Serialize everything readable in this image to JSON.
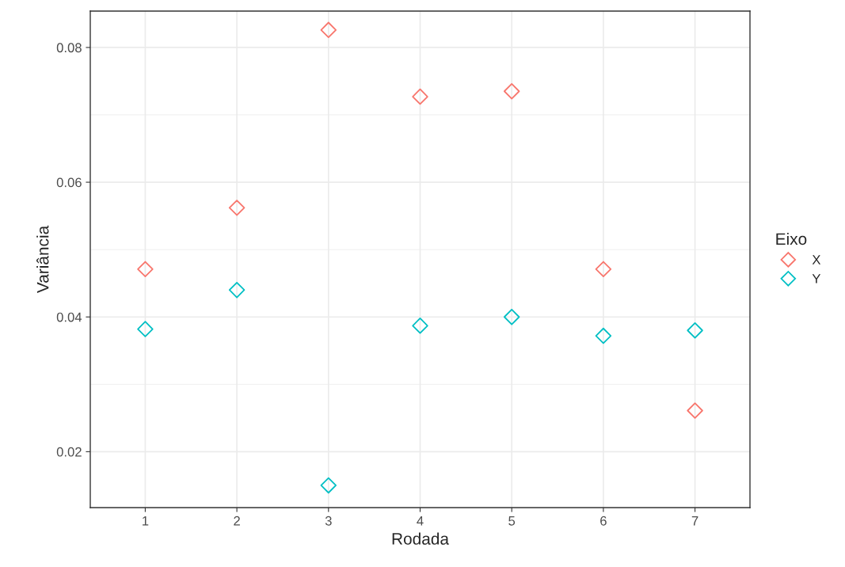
{
  "chart_data": {
    "type": "scatter",
    "xlabel": "Rodada",
    "ylabel": "Variância",
    "legend_title": "Eixo",
    "categories": [
      "1",
      "2",
      "3",
      "4",
      "5",
      "6",
      "7"
    ],
    "series": [
      {
        "name": "X",
        "color": "#f8766d",
        "values": [
          0.0471,
          0.0562,
          0.0826,
          0.0727,
          0.0735,
          0.0471,
          0.0261
        ]
      },
      {
        "name": "Y",
        "color": "#00bfc4",
        "values": [
          0.0382,
          0.044,
          0.015,
          0.0387,
          0.04,
          0.0372,
          0.038
        ]
      }
    ],
    "ylim": [
      0.0117,
      0.0854
    ],
    "yticks": [
      {
        "value": 0.02,
        "label": "0.02"
      },
      {
        "value": 0.04,
        "label": "0.04"
      },
      {
        "value": 0.06,
        "label": "0.06"
      },
      {
        "value": 0.08,
        "label": "0.08"
      }
    ],
    "grid": true,
    "legend": "right",
    "marker": "diamond"
  }
}
